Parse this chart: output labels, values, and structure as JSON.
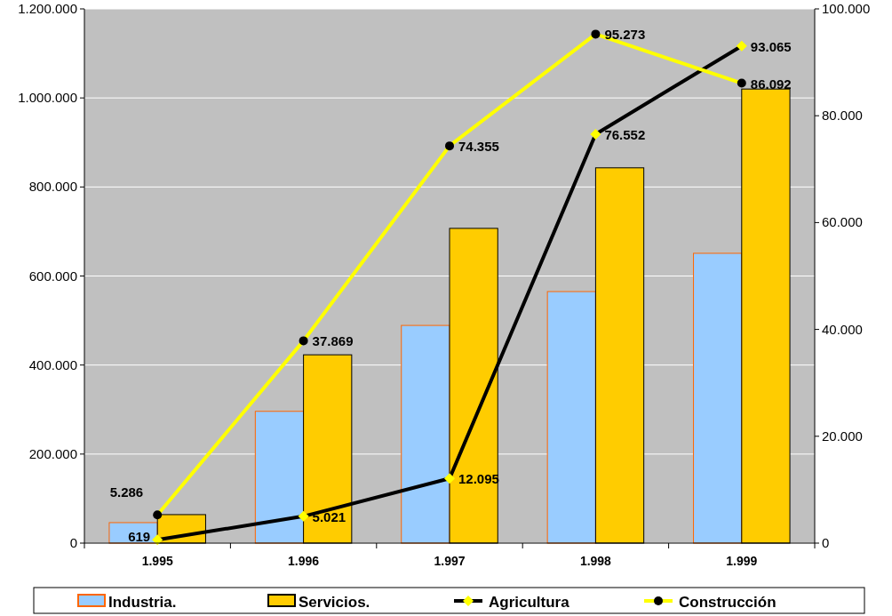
{
  "chart_data": {
    "type": "bar",
    "categories": [
      "1.995",
      "1.996",
      "1.997",
      "1.998",
      "1.999"
    ],
    "series": [
      {
        "name": "Industria.",
        "color": "#99ccff",
        "values": [
          46000,
          296000,
          489000,
          565000,
          651000
        ]
      },
      {
        "name": "Servicios.",
        "color": "#ffcc00",
        "values": [
          64000,
          423000,
          707000,
          843000,
          1020000
        ]
      },
      {
        "name": "Agricultura",
        "type": "line",
        "axis": "y2",
        "color": "#000000",
        "marker": "diamond",
        "values": [
          619,
          5021,
          12095,
          76552,
          93065
        ],
        "value_labels": [
          "619",
          "5.021",
          "12.095",
          "76.552",
          "93.065"
        ]
      },
      {
        "name": "Construcción",
        "type": "line",
        "axis": "y2",
        "color": "#ffff00",
        "marker": "circle",
        "values": [
          5286,
          37869,
          74355,
          95273,
          86092
        ],
        "value_labels": [
          "5.286",
          "37.869",
          "74.355",
          "95.273",
          "86.092"
        ]
      }
    ],
    "ylim": [
      0,
      1200000
    ],
    "yticks": [
      {
        "value": 0,
        "label": "0"
      },
      {
        "value": 200000,
        "label": "200.000"
      },
      {
        "value": 400000,
        "label": "400.000"
      },
      {
        "value": 600000,
        "label": "600.000"
      },
      {
        "value": 800000,
        "label": "800.000"
      },
      {
        "value": 1000000,
        "label": "1.000.000"
      },
      {
        "value": 1200000,
        "label": "1.200.000"
      }
    ],
    "y2lim": [
      0,
      100000
    ],
    "y2ticks": [
      {
        "value": 0,
        "label": "0"
      },
      {
        "value": 20000,
        "label": "20.000"
      },
      {
        "value": 40000,
        "label": "40.000"
      },
      {
        "value": 60000,
        "label": "60.000"
      },
      {
        "value": 80000,
        "label": "80.000"
      },
      {
        "value": 100000,
        "label": "100.000"
      }
    ],
    "grid": "y",
    "legend": "bottom",
    "line_style": "solid"
  }
}
